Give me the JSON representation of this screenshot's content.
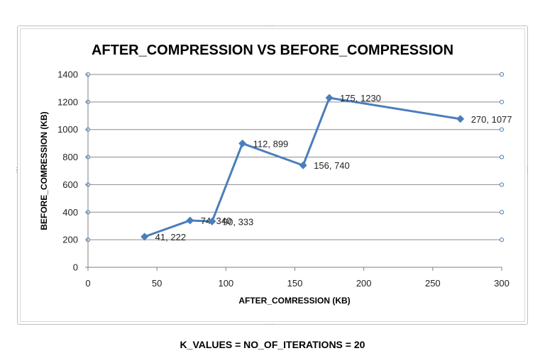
{
  "chart_data": {
    "type": "line",
    "title": "AFTER_COMPRESSION VS BEFORE_COMPRESSION",
    "xlabel": "AFTER_COMRESSION  (KB)",
    "ylabel": "BEFORE_COMRESSION  (KB)",
    "xlim": [
      0,
      300
    ],
    "ylim": [
      0,
      1400
    ],
    "xticks": [
      0,
      50,
      100,
      150,
      200,
      250,
      300
    ],
    "yticks": [
      0,
      200,
      400,
      600,
      800,
      1000,
      1200,
      1400
    ],
    "grid": true,
    "legend": "none",
    "series": [
      {
        "color": "#4a7ebb",
        "points": [
          {
            "x": 41,
            "y": 222,
            "label": "41, 222"
          },
          {
            "x": 74,
            "y": 340,
            "label": "74, 340"
          },
          {
            "x": 90,
            "y": 333,
            "label": "90, 333"
          },
          {
            "x": 112,
            "y": 899,
            "label": "112, 899"
          },
          {
            "x": 156,
            "y": 740,
            "label": "156, 740"
          },
          {
            "x": 175,
            "y": 1230,
            "label": "175, 1230"
          },
          {
            "x": 270,
            "y": 1077,
            "label": "270, 1077"
          }
        ]
      }
    ]
  },
  "footer": "K_VALUES = NO_OF_ITERATIONS = 20"
}
